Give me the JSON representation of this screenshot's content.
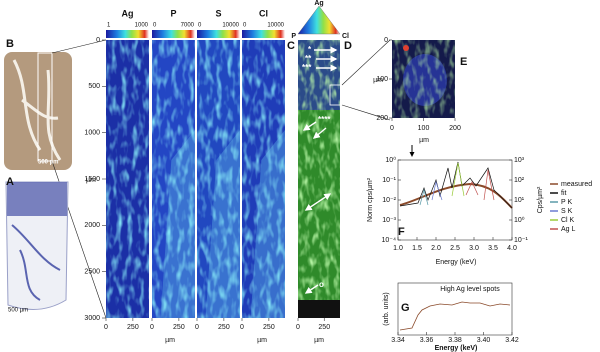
{
  "panel_labels": {
    "a": "A",
    "b": "B",
    "c": "C",
    "d": "D",
    "e": "E",
    "f": "F",
    "g": "G"
  },
  "scale_bars": [
    "500 µm",
    "500 µm"
  ],
  "maps": {
    "elements": [
      {
        "name": "Ag",
        "range": [
          1,
          1000
        ],
        "color": "#1b2fa6"
      },
      {
        "name": "P",
        "range": [
          0,
          7000
        ],
        "color": "#2346c4"
      },
      {
        "name": "S",
        "range": [
          0,
          10000
        ],
        "color": "#2148c0"
      },
      {
        "name": "Cl",
        "range": [
          0,
          10000
        ],
        "color": "#1f3cb8"
      }
    ],
    "ylim": [
      0,
      3000
    ],
    "yticks": [
      0,
      500,
      1000,
      1500,
      2000,
      2500,
      3000
    ],
    "y_label": "µm",
    "xlim": [
      0,
      400
    ],
    "xticks": [
      0,
      250
    ],
    "x_label": "µm"
  },
  "composite": {
    "triangle": [
      "Ag",
      "P",
      "Cl"
    ],
    "markers": [
      "*",
      "**",
      "***",
      "****",
      "o"
    ],
    "color": "#2f8a2a"
  },
  "inset_e": {
    "xlim": [
      0,
      200
    ],
    "ylim": [
      0,
      200
    ],
    "xticks": [
      0,
      100,
      200
    ],
    "yticks": [
      0,
      100,
      200
    ],
    "x_label": "µm",
    "y_label": "µm"
  },
  "spectrum_f": {
    "xlim": [
      1,
      4
    ],
    "xticks": [
      {
        "value": 1,
        "label": "1.0"
      },
      {
        "value": 1.5,
        "label": "1.5"
      },
      {
        "value": 2,
        "label": "2.0"
      },
      {
        "value": 2.5,
        "label": "2.5"
      },
      {
        "value": 3,
        "label": "3.0"
      },
      {
        "value": 3.5,
        "label": "3.5"
      },
      {
        "value": 4,
        "label": "4.0"
      }
    ],
    "ylim": [
      0.0001,
      1
    ],
    "yticks": [
      {
        "value": 1,
        "label": "10⁰"
      },
      {
        "value": 0.1,
        "label": "10⁻¹"
      },
      {
        "value": 0.01,
        "label": "10⁻²"
      },
      {
        "value": 0.001,
        "label": "10⁻³"
      },
      {
        "value": 0.0001,
        "label": "10⁻⁴"
      }
    ],
    "y2lim": [
      0.1,
      1000
    ],
    "y2ticks": [
      {
        "value": 1000,
        "label": "10³"
      },
      {
        "value": 100,
        "label": "10²"
      },
      {
        "value": 10,
        "label": "10¹"
      },
      {
        "value": 1,
        "label": "10⁰"
      },
      {
        "value": 0.1,
        "label": "10⁻¹"
      }
    ],
    "y_label": "Norm cps/µm²",
    "y2_label": "Cps/µm²",
    "x_label": "Energy (keV)",
    "legend": [
      {
        "name": "measured",
        "color": "#8a4a2a"
      },
      {
        "name": "fit",
        "color": "#111111"
      },
      {
        "name": "P K",
        "color": "#5a9aa8"
      },
      {
        "name": "S K",
        "color": "#6a7bd0"
      },
      {
        "name": "Cl K",
        "color": "#9acb3a"
      },
      {
        "name": "Ag L",
        "color": "#c0504d"
      }
    ]
  },
  "spectrum_g": {
    "title": "High Ag level spots",
    "xlim": [
      3.34,
      3.42
    ],
    "xticks": [
      3.34,
      3.36,
      3.38,
      {
        "value": 3.4,
        "label": "3.40"
      },
      3.42
    ],
    "y_label": "(arb. units)",
    "x_label": "Energy (keV)"
  }
}
